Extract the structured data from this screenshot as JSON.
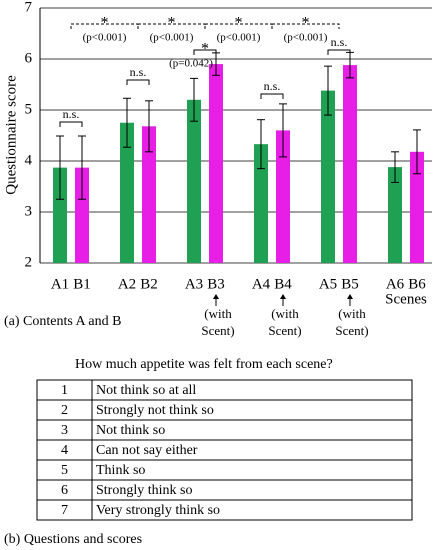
{
  "chart_data": {
    "type": "bar",
    "y_label": "Questionnaire score",
    "categories": [
      "A1",
      "B1",
      "A2",
      "B2",
      "A3",
      "B3",
      "A4",
      "B4",
      "A5",
      "B5",
      "A6",
      "B6"
    ],
    "values": [
      3.87,
      3.87,
      4.75,
      4.68,
      5.2,
      5.9,
      4.33,
      4.6,
      5.38,
      5.88,
      3.88,
      4.18
    ],
    "errors": [
      0.62,
      0.62,
      0.48,
      0.5,
      0.42,
      0.22,
      0.48,
      0.52,
      0.48,
      0.25,
      0.3,
      0.43
    ],
    "colors": [
      "#1fa052",
      "#e61ee6",
      "#1fa052",
      "#e61ee6",
      "#1fa052",
      "#e61ee6",
      "#1fa052",
      "#e61ee6",
      "#1fa052",
      "#e61ee6",
      "#1fa052",
      "#e61ee6"
    ],
    "ylim": [
      2,
      7
    ],
    "yticks": [
      2,
      3,
      4,
      5,
      6,
      7
    ],
    "grid": true,
    "x_label": "Scenes",
    "scent_labels": [
      [
        "(with",
        "Scent)"
      ],
      [
        "(with",
        "Scent)"
      ],
      [
        "(with",
        "Scent)"
      ]
    ],
    "annotations": [
      {
        "text": "*",
        "note": "(p<0.001)"
      },
      {
        "text": "*",
        "note": "(p<0.001)"
      },
      {
        "text": "*",
        "note": "(p<0.001)"
      },
      {
        "text": "*",
        "note": "(p<0.001)"
      },
      {
        "text": "n.s."
      },
      {
        "text": "n.s."
      },
      {
        "text": "*",
        "note": "(p=0.042)"
      },
      {
        "text": "n.s."
      },
      {
        "text": "n.s."
      }
    ],
    "caption": "(a) Contents A and B"
  },
  "question": "How much appetite was felt from each scene?",
  "table": {
    "rows": [
      [
        "1",
        "Not think so at all"
      ],
      [
        "2",
        "Strongly not think so"
      ],
      [
        "3",
        "Not think so"
      ],
      [
        "4",
        "Can not say either"
      ],
      [
        "5",
        "Think so"
      ],
      [
        "6",
        "Strongly think so"
      ],
      [
        "7",
        "Very strongly think so"
      ]
    ]
  },
  "caption": "(b) Questions and scores"
}
